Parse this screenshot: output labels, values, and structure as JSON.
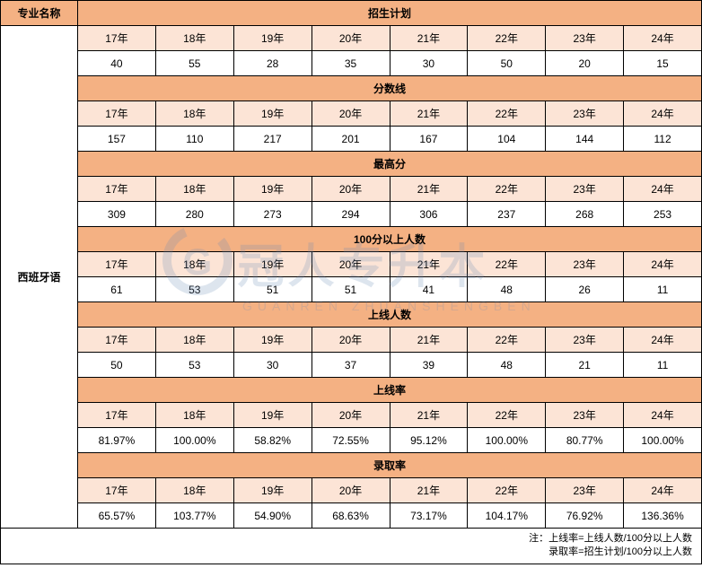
{
  "table": {
    "col_major_header": "专业名称",
    "major_name": "西班牙语",
    "years": [
      "17年",
      "18年",
      "19年",
      "20年",
      "21年",
      "22年",
      "23年",
      "24年"
    ],
    "sections": [
      {
        "title": "招生计划",
        "values": [
          "40",
          "55",
          "28",
          "35",
          "30",
          "50",
          "20",
          "15"
        ]
      },
      {
        "title": "分数线",
        "values": [
          "157",
          "110",
          "217",
          "201",
          "167",
          "104",
          "144",
          "112"
        ]
      },
      {
        "title": "最高分",
        "values": [
          "309",
          "280",
          "273",
          "294",
          "306",
          "237",
          "268",
          "253"
        ]
      },
      {
        "title": "100分以上人数",
        "values": [
          "61",
          "53",
          "51",
          "51",
          "41",
          "48",
          "26",
          "11"
        ]
      },
      {
        "title": "上线人数",
        "values": [
          "50",
          "53",
          "30",
          "37",
          "39",
          "48",
          "21",
          "11"
        ]
      },
      {
        "title": "上线率",
        "values": [
          "81.97%",
          "100.00%",
          "58.82%",
          "72.55%",
          "95.12%",
          "100.00%",
          "80.77%",
          "100.00%"
        ]
      },
      {
        "title": "录取率",
        "values": [
          "65.57%",
          "103.77%",
          "54.90%",
          "68.63%",
          "73.17%",
          "104.17%",
          "76.92%",
          "136.36%"
        ]
      }
    ],
    "note_line1": "注：上线率=上线人数/100分以上人数",
    "note_line2": "录取率=招生计划/100分以上人数"
  },
  "colors": {
    "header_bg": "#f4b183",
    "year_bg": "#fce4d6",
    "data_bg": "#ffffff",
    "border": "#000000"
  },
  "watermark": {
    "main_text": "冠人专升本",
    "sub_text": "GUANREN ZHUANSHENGBEN",
    "logo_char": "G"
  }
}
